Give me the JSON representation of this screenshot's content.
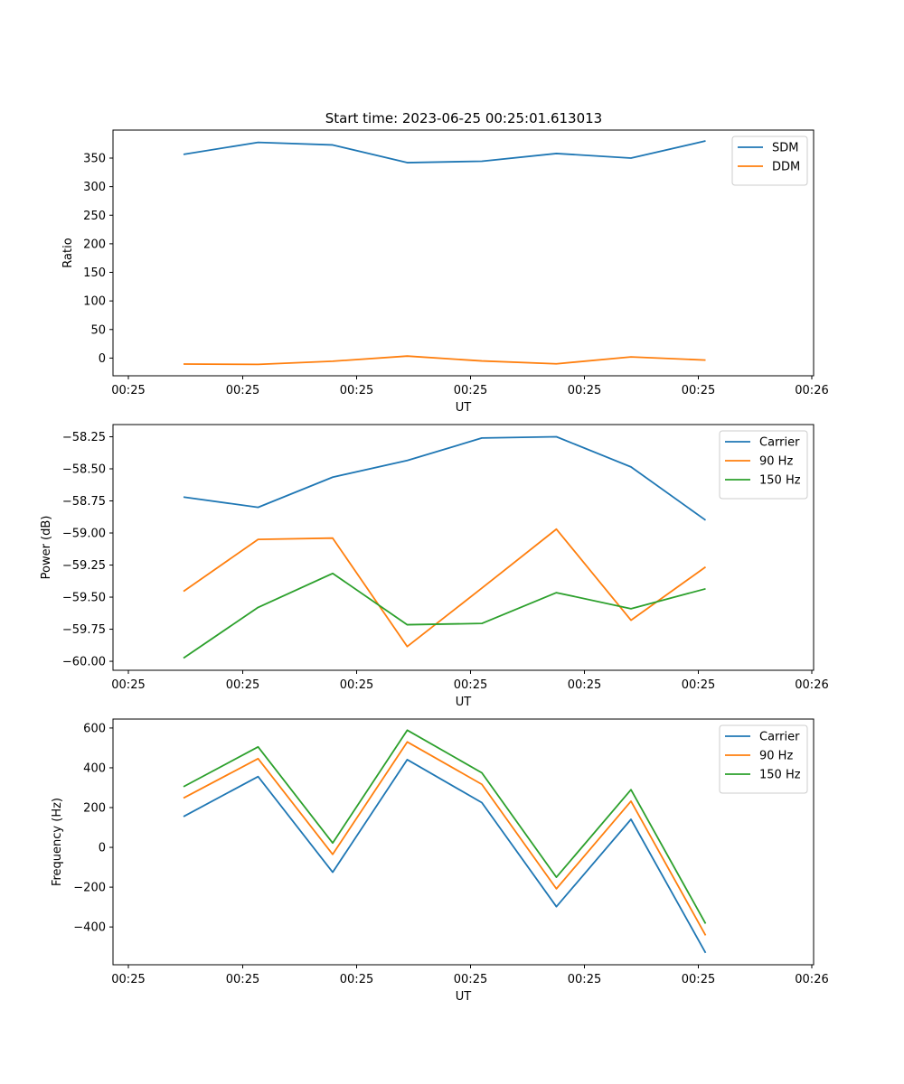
{
  "figure": {
    "title": "Start time: 2023-06-25 00:25:01.613013"
  },
  "chart_data": [
    {
      "type": "line",
      "ylabel": "Ratio",
      "xlabel": "UT",
      "x_tick_labels": [
        "00:25",
        "00:25",
        "00:25",
        "00:25",
        "00:25",
        "00:25",
        "00:26"
      ],
      "y_ticks": [
        0,
        50,
        100,
        150,
        200,
        250,
        300,
        350
      ],
      "y_tick_labels": [
        "0",
        "50",
        "100",
        "150",
        "200",
        "250",
        "300",
        "350"
      ],
      "ylim": [
        -31,
        399
      ],
      "legend_position": "upper-right",
      "series": [
        {
          "name": "SDM",
          "color": "#1f77b4",
          "values": [
            356.5,
            377.5,
            373.0,
            342.0,
            344.5,
            358.0,
            350.0,
            380.0
          ]
        },
        {
          "name": "DDM",
          "color": "#ff7f0e",
          "values": [
            -10.5,
            -11.0,
            -5.5,
            3.5,
            -5.0,
            -10.0,
            2.0,
            -3.5
          ]
        }
      ]
    },
    {
      "type": "line",
      "ylabel": "Power (dB)",
      "xlabel": "UT",
      "x_tick_labels": [
        "00:25",
        "00:25",
        "00:25",
        "00:25",
        "00:25",
        "00:25",
        "00:26"
      ],
      "y_ticks": [
        -60.0,
        -59.75,
        -59.5,
        -59.25,
        -59.0,
        -58.75,
        -58.5,
        -58.25
      ],
      "y_tick_labels": [
        "−60.00",
        "−59.75",
        "−59.50",
        "−59.25",
        "−59.00",
        "−58.75",
        "−58.50",
        "−58.25"
      ],
      "ylim": [
        -60.07,
        -58.155
      ],
      "legend_position": "upper-right",
      "series": [
        {
          "name": "Carrier",
          "color": "#1f77b4",
          "values": [
            -58.72,
            -58.8,
            -58.565,
            -58.435,
            -58.26,
            -58.25,
            -58.485,
            -58.9
          ]
        },
        {
          "name": "90 Hz",
          "color": "#ff7f0e",
          "values": [
            -59.455,
            -59.05,
            -59.04,
            -59.885,
            -59.43,
            -58.97,
            -59.68,
            -59.265
          ]
        },
        {
          "name": "150 Hz",
          "color": "#2ca02c",
          "values": [
            -59.975,
            -59.58,
            -59.315,
            -59.715,
            -59.705,
            -59.465,
            -59.59,
            -59.435
          ]
        }
      ]
    },
    {
      "type": "line",
      "ylabel": "Frequency (Hz)",
      "xlabel": "UT",
      "x_tick_labels": [
        "00:25",
        "00:25",
        "00:25",
        "00:25",
        "00:25",
        "00:25",
        "00:26"
      ],
      "y_ticks": [
        -400,
        -200,
        0,
        200,
        400,
        600
      ],
      "y_tick_labels": [
        "−400",
        "−200",
        "0",
        "200",
        "400",
        "600"
      ],
      "ylim": [
        -590,
        645
      ],
      "legend_position": "upper-right",
      "series": [
        {
          "name": "Carrier",
          "color": "#1f77b4",
          "values": [
            155,
            356,
            -125,
            441,
            225,
            -298,
            141,
            -530
          ]
        },
        {
          "name": "90 Hz",
          "color": "#ff7f0e",
          "values": [
            248,
            446,
            -35,
            530,
            317,
            -208,
            232,
            -442
          ]
        },
        {
          "name": "150 Hz",
          "color": "#2ca02c",
          "values": [
            305,
            505,
            22,
            589,
            375,
            -150,
            290,
            -383
          ]
        }
      ]
    }
  ]
}
